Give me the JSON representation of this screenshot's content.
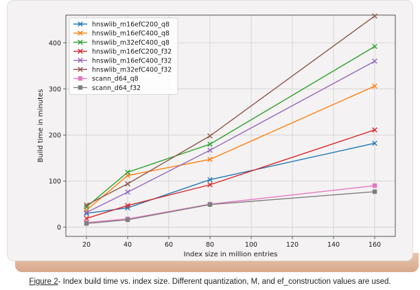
{
  "chart_data": {
    "type": "line",
    "xlabel": "Index size in million entries",
    "ylabel": "Build time in minutes",
    "xlim": [
      10,
      170
    ],
    "ylim": [
      -20,
      460
    ],
    "xticks": [
      20,
      40,
      60,
      80,
      100,
      120,
      140,
      160
    ],
    "yticks": [
      0,
      100,
      200,
      300,
      400
    ],
    "grid": true,
    "legend_position": "top-left",
    "x": [
      20,
      40,
      80,
      160
    ],
    "series": [
      {
        "name": "hnswlib_m16efC200_q8",
        "color": "#1f77b4",
        "marker": "x",
        "values": [
          30,
          42,
          103,
          182
        ]
      },
      {
        "name": "hnswlib_m16efC400_q8",
        "color": "#ff7f0e",
        "marker": "x",
        "values": [
          37,
          112,
          147,
          306
        ]
      },
      {
        "name": "hnswlib_m32efC400_q8",
        "color": "#2ca02c",
        "marker": "x",
        "values": [
          44,
          119,
          180,
          392
        ]
      },
      {
        "name": "hnswlib_m16efC200_f32",
        "color": "#d62728",
        "marker": "x",
        "values": [
          19,
          47,
          92,
          211
        ]
      },
      {
        "name": "hnswlib_m16efC400_f32",
        "color": "#9467bd",
        "marker": "x",
        "values": [
          32,
          76,
          167,
          360
        ]
      },
      {
        "name": "hnswlib_m32efC400_f32",
        "color": "#8c564b",
        "marker": "x",
        "values": [
          48,
          94,
          198,
          458
        ]
      },
      {
        "name": "scann_d64_q8",
        "color": "#e377c2",
        "marker": "s",
        "values": [
          10,
          18,
          50,
          90
        ]
      },
      {
        "name": "scann_d64_f32",
        "color": "#7f7f7f",
        "marker": "s",
        "values": [
          8,
          16,
          49,
          77
        ]
      }
    ]
  },
  "caption": {
    "figure_label": "Figure 2",
    "text": "- Index build time vs. index size. Different quantization, M, and ef_construction values are used."
  }
}
